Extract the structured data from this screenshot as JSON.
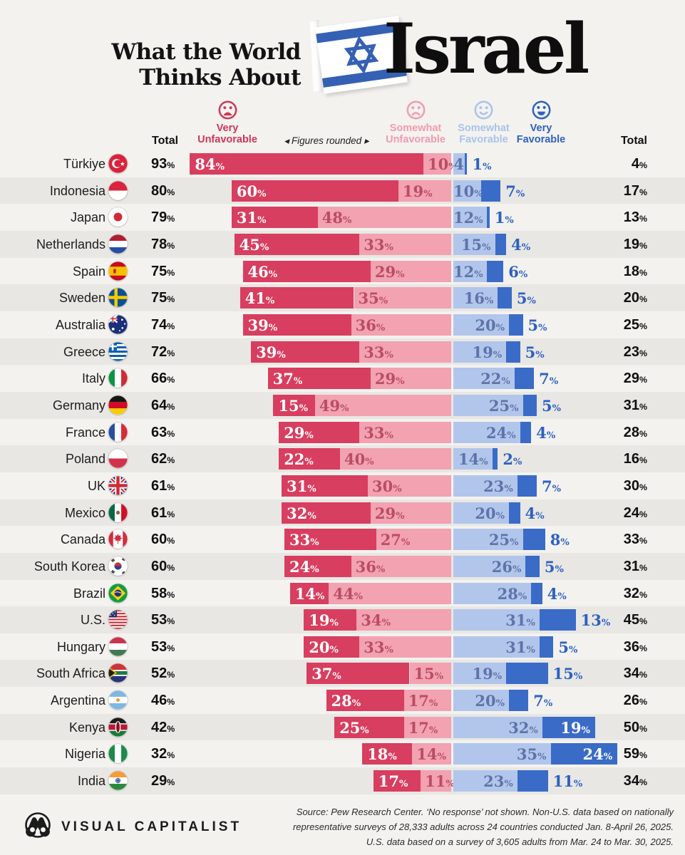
{
  "title": {
    "line1": "What the World",
    "line2": "Thinks About",
    "word": "Israel"
  },
  "legend": {
    "total_left": "Total",
    "very_unfavorable": {
      "l1": "Very",
      "l2": "Unfavorable"
    },
    "note": "◂ Figures rounded ▸",
    "somewhat_unfavorable": {
      "l1": "Somewhat",
      "l2": "Unfavorable"
    },
    "somewhat_favorable": {
      "l1": "Somewhat",
      "l2": "Favorable"
    },
    "very_favorable": {
      "l1": "Very",
      "l2": "Favorable"
    },
    "total_right": "Total"
  },
  "colors": {
    "very_unfavorable": "#d83e5f",
    "somewhat_unfavorable": "#f2a2b0",
    "somewhat_favorable": "#b2c6ec",
    "very_favorable": "#3a6bc7",
    "background": "#f3f2ef",
    "row_band": "#e8e7e3",
    "flag_stripe_blue": "#3561b4"
  },
  "chart_data": {
    "type": "bar",
    "orientation": "horizontal-diverging-stacked",
    "title": "What the World Thinks About Israel",
    "series_names": [
      "Very Unfavorable",
      "Somewhat Unfavorable",
      "Somewhat Favorable",
      "Very Favorable"
    ],
    "units": "percent",
    "rows": [
      {
        "country": "Türkiye",
        "flag": "turkiye",
        "total_unfavorable": 93,
        "very_unfavorable": 84,
        "somewhat_unfavorable": 10,
        "somewhat_favorable": 4,
        "very_favorable": 1,
        "total_favorable": 4,
        "sf_label": "4"
      },
      {
        "country": "Indonesia",
        "flag": "indonesia",
        "total_unfavorable": 80,
        "very_unfavorable": 60,
        "somewhat_unfavorable": 19,
        "somewhat_favorable": 10,
        "very_favorable": 7,
        "total_favorable": 17
      },
      {
        "country": "Japan",
        "flag": "japan",
        "total_unfavorable": 79,
        "very_unfavorable": 31,
        "somewhat_unfavorable": 48,
        "somewhat_favorable": 12,
        "very_favorable": 1,
        "total_favorable": 13
      },
      {
        "country": "Netherlands",
        "flag": "netherlands",
        "total_unfavorable": 78,
        "very_unfavorable": 45,
        "somewhat_unfavorable": 33,
        "somewhat_favorable": 15,
        "very_favorable": 4,
        "total_favorable": 19
      },
      {
        "country": "Spain",
        "flag": "spain",
        "total_unfavorable": 75,
        "very_unfavorable": 46,
        "somewhat_unfavorable": 29,
        "somewhat_favorable": 12,
        "very_favorable": 6,
        "total_favorable": 18
      },
      {
        "country": "Sweden",
        "flag": "sweden",
        "total_unfavorable": 75,
        "very_unfavorable": 41,
        "somewhat_unfavorable": 35,
        "somewhat_favorable": 16,
        "very_favorable": 5,
        "total_favorable": 20
      },
      {
        "country": "Australia",
        "flag": "australia",
        "total_unfavorable": 74,
        "very_unfavorable": 39,
        "somewhat_unfavorable": 36,
        "somewhat_favorable": 20,
        "very_favorable": 5,
        "total_favorable": 25
      },
      {
        "country": "Greece",
        "flag": "greece",
        "total_unfavorable": 72,
        "very_unfavorable": 39,
        "somewhat_unfavorable": 33,
        "somewhat_favorable": 19,
        "very_favorable": 5,
        "total_favorable": 23
      },
      {
        "country": "Italy",
        "flag": "italy",
        "total_unfavorable": 66,
        "very_unfavorable": 37,
        "somewhat_unfavorable": 29,
        "somewhat_favorable": 22,
        "very_favorable": 7,
        "total_favorable": 29
      },
      {
        "country": "Germany",
        "flag": "germany",
        "total_unfavorable": 64,
        "very_unfavorable": 15,
        "somewhat_unfavorable": 49,
        "somewhat_favorable": 25,
        "very_favorable": 5,
        "total_favorable": 31
      },
      {
        "country": "France",
        "flag": "france",
        "total_unfavorable": 63,
        "very_unfavorable": 29,
        "somewhat_unfavorable": 33,
        "somewhat_favorable": 24,
        "very_favorable": 4,
        "total_favorable": 28
      },
      {
        "country": "Poland",
        "flag": "poland",
        "total_unfavorable": 62,
        "very_unfavorable": 22,
        "somewhat_unfavorable": 40,
        "somewhat_favorable": 14,
        "very_favorable": 2,
        "total_favorable": 16
      },
      {
        "country": "UK",
        "flag": "uk",
        "total_unfavorable": 61,
        "very_unfavorable": 31,
        "somewhat_unfavorable": 30,
        "somewhat_favorable": 23,
        "very_favorable": 7,
        "total_favorable": 30
      },
      {
        "country": "Mexico",
        "flag": "mexico",
        "total_unfavorable": 61,
        "very_unfavorable": 32,
        "somewhat_unfavorable": 29,
        "somewhat_favorable": 20,
        "very_favorable": 4,
        "total_favorable": 24
      },
      {
        "country": "Canada",
        "flag": "canada",
        "total_unfavorable": 60,
        "very_unfavorable": 33,
        "somewhat_unfavorable": 27,
        "somewhat_favorable": 25,
        "very_favorable": 8,
        "total_favorable": 33
      },
      {
        "country": "South Korea",
        "flag": "southkorea",
        "total_unfavorable": 60,
        "very_unfavorable": 24,
        "somewhat_unfavorable": 36,
        "somewhat_favorable": 26,
        "very_favorable": 5,
        "total_favorable": 31
      },
      {
        "country": "Brazil",
        "flag": "brazil",
        "total_unfavorable": 58,
        "very_unfavorable": 14,
        "somewhat_unfavorable": 44,
        "somewhat_favorable": 28,
        "very_favorable": 4,
        "total_favorable": 32
      },
      {
        "country": "U.S.",
        "flag": "us",
        "total_unfavorable": 53,
        "very_unfavorable": 19,
        "somewhat_unfavorable": 34,
        "somewhat_favorable": 31,
        "very_favorable": 13,
        "total_favorable": 45
      },
      {
        "country": "Hungary",
        "flag": "hungary",
        "total_unfavorable": 53,
        "very_unfavorable": 20,
        "somewhat_unfavorable": 33,
        "somewhat_favorable": 31,
        "very_favorable": 5,
        "total_favorable": 36
      },
      {
        "country": "South Africa",
        "flag": "southafrica",
        "total_unfavorable": 52,
        "very_unfavorable": 37,
        "somewhat_unfavorable": 15,
        "somewhat_favorable": 19,
        "very_favorable": 15,
        "total_favorable": 34
      },
      {
        "country": "Argentina",
        "flag": "argentina",
        "total_unfavorable": 46,
        "very_unfavorable": 28,
        "somewhat_unfavorable": 17,
        "somewhat_favorable": 20,
        "very_favorable": 7,
        "total_favorable": 26
      },
      {
        "country": "Kenya",
        "flag": "kenya",
        "total_unfavorable": 42,
        "very_unfavorable": 25,
        "somewhat_unfavorable": 17,
        "somewhat_favorable": 32,
        "very_favorable": 19,
        "total_favorable": 50,
        "vf_inside": true
      },
      {
        "country": "Nigeria",
        "flag": "nigeria",
        "total_unfavorable": 32,
        "very_unfavorable": 18,
        "somewhat_unfavorable": 14,
        "somewhat_favorable": 35,
        "very_favorable": 24,
        "total_favorable": 59,
        "vf_inside": true
      },
      {
        "country": "India",
        "flag": "india",
        "total_unfavorable": 29,
        "very_unfavorable": 17,
        "somewhat_unfavorable": 11,
        "somewhat_favorable": 23,
        "very_favorable": 11,
        "total_favorable": 34
      }
    ]
  },
  "footer": {
    "brand": "VISUAL CAPITALIST",
    "source_lines": [
      "Source: Pew Research Center. ‘No response’ not shown. Non-U.S. data based on nationally",
      "representative surveys of 28,333 adults across 24 countries conducted Jan. 8-April 26, 2025.",
      "U.S. data based on a survey of 3,605 adults from Mar. 24 to Mar. 30, 2025."
    ]
  }
}
